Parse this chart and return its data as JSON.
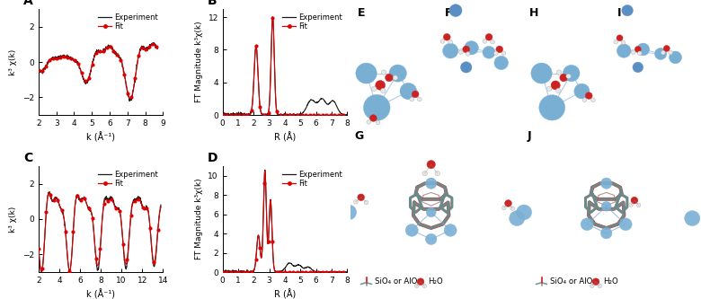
{
  "background_color": "#ffffff",
  "exp_color": "#1a1a1a",
  "fit_color": "#dd0000",
  "legend_exp": "Experiment",
  "legend_fit": "Fit",
  "panel_A": {
    "xlabel": "k (Å⁻¹)",
    "ylabel": "k³ χ(k)",
    "xlim": [
      2,
      9
    ],
    "ylim": [
      -3,
      3
    ],
    "xticks": [
      2,
      3,
      4,
      5,
      6,
      7,
      8,
      9
    ],
    "yticks": [
      -2,
      0,
      2
    ],
    "label": "A"
  },
  "panel_B": {
    "xlabel": "R (Å)",
    "ylabel": "FT Magnitude k³χ(k)",
    "xlim": [
      0,
      8
    ],
    "ylim": [
      0,
      13
    ],
    "xticks": [
      0,
      1,
      2,
      3,
      4,
      5,
      6,
      7,
      8
    ],
    "yticks": [
      0,
      4,
      8,
      12
    ],
    "label": "B"
  },
  "panel_C": {
    "xlabel": "k (Å⁻¹)",
    "ylabel": "k³ χ(k)",
    "xlim": [
      2,
      14
    ],
    "ylim": [
      -3,
      3
    ],
    "xticks": [
      2,
      4,
      6,
      8,
      10,
      12,
      14
    ],
    "yticks": [
      -2,
      0,
      2
    ],
    "label": "C"
  },
  "panel_D": {
    "xlabel": "R (Å)",
    "ylabel": "FT Magnitude k³χ(k)",
    "xlim": [
      0,
      8
    ],
    "ylim": [
      0,
      11
    ],
    "xticks": [
      0,
      1,
      2,
      3,
      4,
      5,
      6,
      7,
      8
    ],
    "yticks": [
      0,
      2,
      4,
      6,
      8,
      10
    ],
    "label": "D"
  },
  "blue_ag": "#7aafd4",
  "blue_ag_dark": "#5a8fc4",
  "red_o": "#cc2222",
  "white_h": "#eeeeee",
  "cage_gray": "#6a8a8a",
  "cage_red": "#cc1111",
  "legend_sio4": "SiO₄ or AlO₄",
  "legend_h2o": "H₂O"
}
